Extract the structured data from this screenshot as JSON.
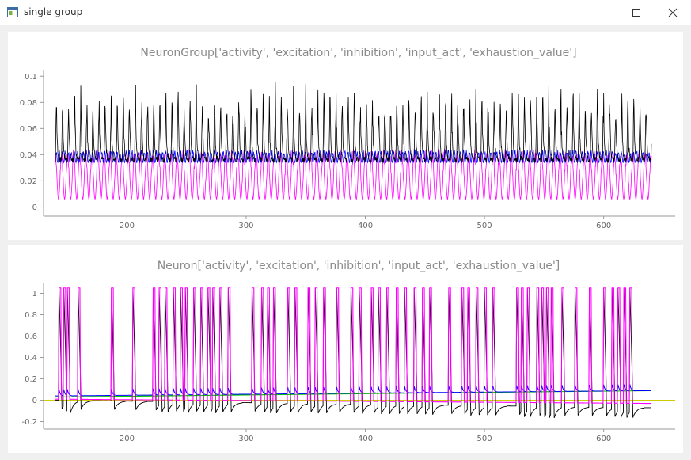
{
  "window": {
    "title": "single group",
    "icon": "app-window-icon",
    "controls": [
      "minimize-icon",
      "maximize-icon",
      "close-icon"
    ]
  },
  "colors": {
    "activity": "#000000",
    "excitation": "#0000ff",
    "inhibition": "#ff00ff",
    "input_act": "#00cc00",
    "exhaustion_value": "#cccc00"
  },
  "chart_data": [
    {
      "type": "line",
      "title": "NeuronGroup['activity', 'excitation', 'inhibition', 'input_act', 'exhaustion_value']",
      "xlabel": "",
      "ylabel": "",
      "xlim": [
        130,
        660
      ],
      "ylim": [
        -0.007,
        0.105
      ],
      "x_ticks": [
        200,
        300,
        400,
        500,
        600
      ],
      "y_ticks": [
        0,
        0.02,
        0.04,
        0.06,
        0.08,
        0.1
      ],
      "y_tick_labels": [
        "0",
        "0.02",
        "0.04",
        "0.06",
        "0.08",
        "0.1"
      ],
      "grid": false,
      "x_range_data": [
        140,
        640
      ],
      "pattern": "periodic",
      "period": 5.1,
      "series": [
        {
          "key": "activity",
          "min": 0.036,
          "max": 0.098,
          "shape": "spike"
        },
        {
          "key": "excitation",
          "min": 0.034,
          "max": 0.044,
          "shape": "noise"
        },
        {
          "key": "inhibition",
          "min": 0.006,
          "max": 0.045,
          "shape": "wave"
        },
        {
          "key": "input_act",
          "min": 0.0,
          "max": 0.0,
          "shape": "flat"
        },
        {
          "key": "exhaustion_value",
          "min": 0.0,
          "max": 0.0,
          "shape": "flat"
        }
      ]
    },
    {
      "type": "line",
      "title": "Neuron['activity', 'excitation', 'inhibition', 'input_act', 'exhaustion_value']",
      "xlabel": "",
      "ylabel": "",
      "xlim": [
        130,
        660
      ],
      "ylim": [
        -0.27,
        1.1
      ],
      "x_ticks": [
        200,
        300,
        400,
        500,
        600
      ],
      "y_ticks": [
        -0.2,
        0,
        0.2,
        0.4,
        0.6,
        0.8,
        1
      ],
      "y_tick_labels": [
        "-0.2",
        "0",
        "0.2",
        "0.4",
        "0.6",
        "0.8",
        "1"
      ],
      "grid": false,
      "x_range_data": [
        140,
        640
      ],
      "spike_times": [
        143,
        147,
        150,
        159,
        187,
        205,
        222,
        227,
        232,
        239,
        245,
        249,
        256,
        262,
        268,
        272,
        278,
        285,
        305,
        313,
        318,
        323,
        335,
        341,
        352,
        358,
        365,
        376,
        388,
        395,
        405,
        411,
        418,
        426,
        433,
        441,
        448,
        454,
        470,
        481,
        486,
        493,
        500,
        507,
        527,
        531,
        536,
        544,
        548,
        552,
        556,
        565,
        576,
        588,
        600,
        607,
        612,
        617,
        622
      ],
      "spike_height": 1.05,
      "series": [
        {
          "key": "activity",
          "baseline_start": 0.0,
          "baseline_end": -0.07
        },
        {
          "key": "excitation",
          "baseline_start": 0.04,
          "baseline_end": 0.09
        },
        {
          "key": "inhibition",
          "baseline_start": 0.01,
          "baseline_end": -0.03
        },
        {
          "key": "input_act",
          "baseline_start": 0.03,
          "baseline_end": 0.09
        },
        {
          "key": "exhaustion_value",
          "baseline_start": 0.0,
          "baseline_end": 0.0
        }
      ]
    }
  ]
}
